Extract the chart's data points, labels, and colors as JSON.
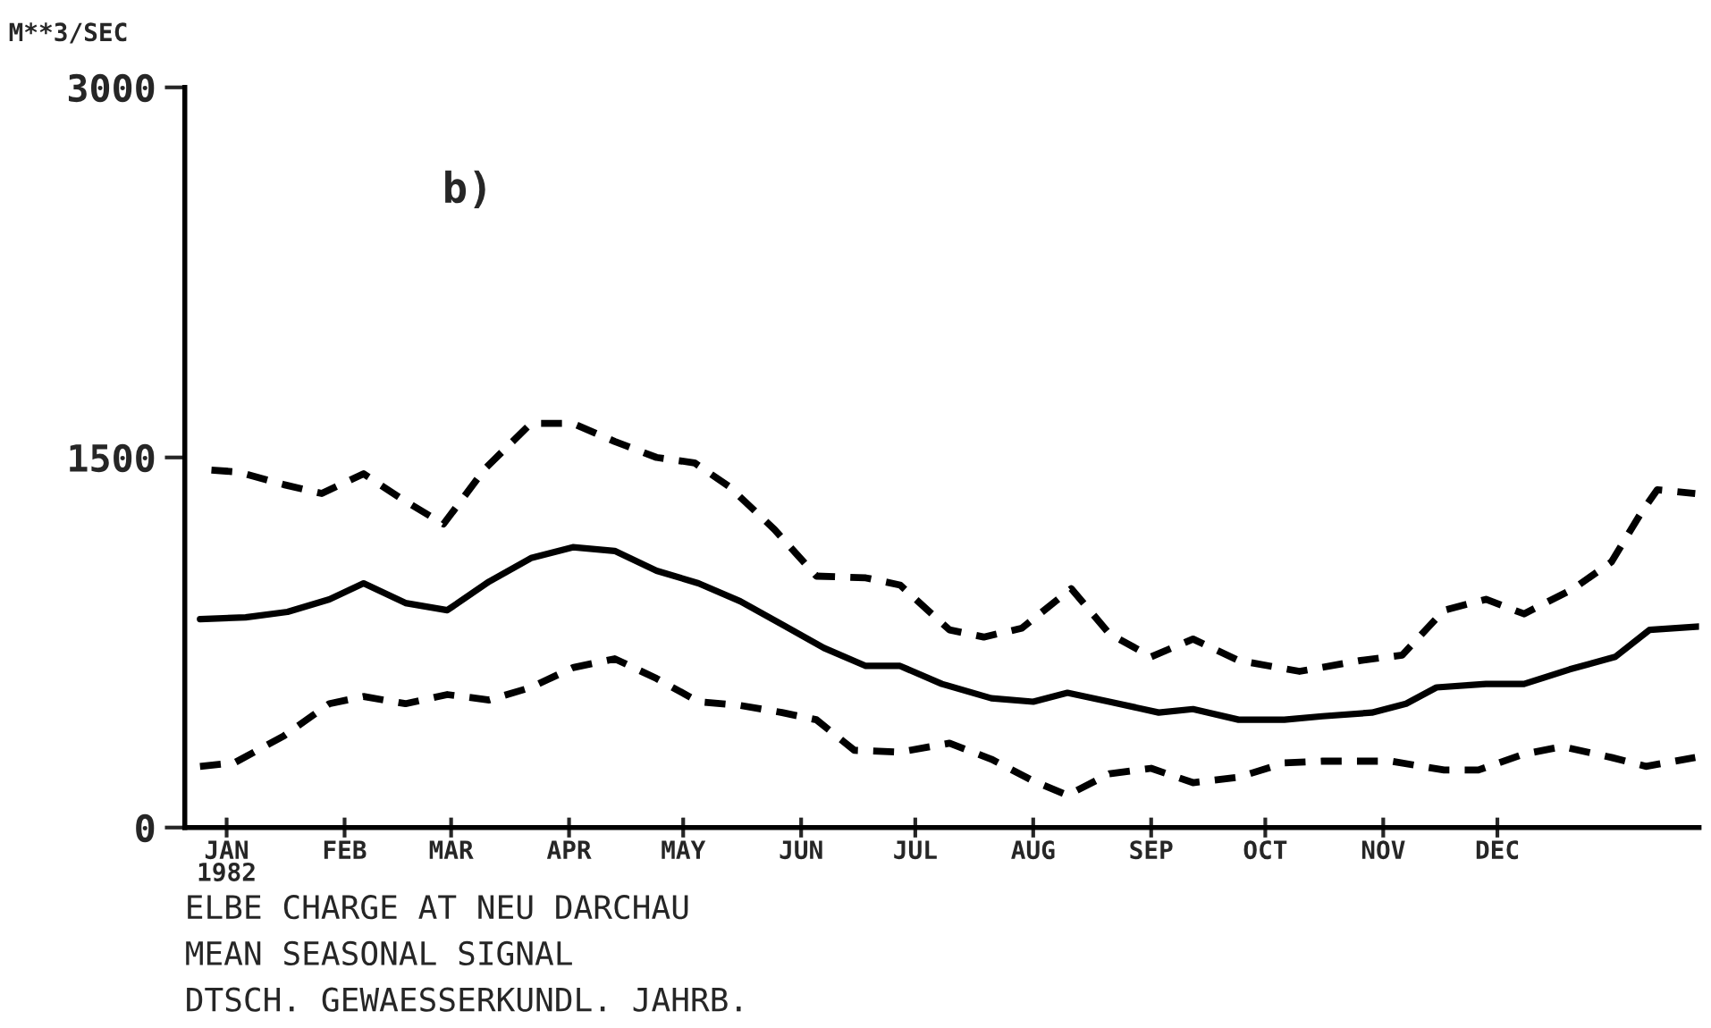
{
  "chart_data": {
    "type": "line",
    "title": "ELBE CHARGE AT NEU DARCHAU",
    "subtitle": "MEAN SEASONAL SIGNAL",
    "ylabel": "M**3/SEC",
    "annotations": [
      "b)",
      "DTSCH. GEWAESSERKUNDL. JAHRB."
    ],
    "xlim": [
      "1981-12-21",
      "1983-01-23"
    ],
    "xticks": [
      {
        "value": "1982-01-01",
        "label": "JAN\n1982"
      },
      {
        "value": "1982-02-01",
        "label": "FEB"
      },
      {
        "value": "1982-03-01",
        "label": "MAR"
      },
      {
        "value": "1982-04-01",
        "label": "APR"
      },
      {
        "value": "1982-05-01",
        "label": "MAY"
      },
      {
        "value": "1982-06-01",
        "label": "JUN"
      },
      {
        "value": "1982-07-01",
        "label": "JUL"
      },
      {
        "value": "1982-08-01",
        "label": "AUG"
      },
      {
        "value": "1982-09-01",
        "label": "SEP"
      },
      {
        "value": "1982-10-01",
        "label": "OCT"
      },
      {
        "value": "1982-11-01",
        "label": "NOV"
      },
      {
        "value": "1982-12-01",
        "label": "DEC"
      }
    ],
    "ylim": [
      0,
      3000
    ],
    "yticks": [
      0,
      1500,
      3000
    ],
    "grid": false,
    "legend": false,
    "series": [
      {
        "color": "#000000",
        "line_style": "dashed",
        "x": [
          "1981-12-28",
          "1982-01-04",
          "1982-01-16",
          "1982-01-26",
          "1982-02-06",
          "1982-02-16",
          "1982-02-27",
          "1982-03-10",
          "1982-03-22",
          "1982-04-02",
          "1982-04-13",
          "1982-04-24",
          "1982-05-04",
          "1982-05-13",
          "1982-05-25",
          "1982-06-05",
          "1982-06-18",
          "1982-06-27",
          "1982-07-10",
          "1982-07-19",
          "1982-07-29",
          "1982-08-11",
          "1982-08-21",
          "1982-09-01",
          "1982-09-12",
          "1982-09-24",
          "1982-10-10",
          "1982-10-26",
          "1982-11-06",
          "1982-11-17",
          "1982-11-28",
          "1982-12-08",
          "1982-12-21",
          "1982-12-31",
          "1983-01-08",
          "1983-01-12",
          "1983-01-22"
        ],
        "values": [
          1449,
          1441,
          1390,
          1354,
          1434,
          1332,
          1230,
          1456,
          1638,
          1638,
          1565,
          1500,
          1478,
          1383,
          1208,
          1019,
          1012,
          983,
          801,
          772,
          808,
          968,
          786,
          692,
          764,
          677,
          633,
          677,
          699,
          881,
          925,
          866,
          968,
          1077,
          1281,
          1369,
          1354
        ]
      },
      {
        "color": "#000000",
        "line_style": "solid",
        "x": [
          "1981-12-25",
          "1982-01-06",
          "1982-01-17",
          "1982-01-28",
          "1982-02-06",
          "1982-02-17",
          "1982-02-28",
          "1982-03-11",
          "1982-03-22",
          "1982-04-02",
          "1982-04-13",
          "1982-04-24",
          "1982-05-05",
          "1982-05-16",
          "1982-05-27",
          "1982-06-07",
          "1982-06-18",
          "1982-06-27",
          "1982-07-08",
          "1982-07-21",
          "1982-08-01",
          "1982-08-10",
          "1982-08-21",
          "1982-09-03",
          "1982-09-12",
          "1982-09-24",
          "1982-10-06",
          "1982-10-16",
          "1982-10-29",
          "1982-11-07",
          "1982-11-15",
          "1982-11-28",
          "1982-12-08",
          "1982-12-20",
          "1983-01-01",
          "1983-01-10",
          "1983-01-23"
        ],
        "values": [
          845,
          852,
          874,
          925,
          990,
          910,
          881,
          997,
          1092,
          1136,
          1121,
          1041,
          990,
          917,
          823,
          728,
          655,
          655,
          582,
          524,
          510,
          546,
          510,
          466,
          480,
          437,
          437,
          451,
          466,
          502,
          568,
          582,
          582,
          641,
          692,
          801,
          815
        ]
      },
      {
        "color": "#000000",
        "line_style": "dashed",
        "x": [
          "1981-12-25",
          "1982-01-03",
          "1982-01-16",
          "1982-01-28",
          "1982-02-06",
          "1982-02-17",
          "1982-02-28",
          "1982-03-11",
          "1982-03-22",
          "1982-04-02",
          "1982-04-13",
          "1982-04-24",
          "1982-05-05",
          "1982-05-16",
          "1982-05-27",
          "1982-06-05",
          "1982-06-15",
          "1982-06-27",
          "1982-07-10",
          "1982-07-21",
          "1982-08-01",
          "1982-08-10",
          "1982-08-21",
          "1982-09-01",
          "1982-09-12",
          "1982-09-24",
          "1982-10-06",
          "1982-10-16",
          "1982-11-03",
          "1982-11-17",
          "1982-11-26",
          "1982-12-08",
          "1982-12-18",
          "1982-12-31",
          "1983-01-09",
          "1983-01-22"
        ],
        "values": [
          248,
          262,
          371,
          502,
          531,
          502,
          539,
          517,
          568,
          648,
          684,
          604,
          510,
          495,
          466,
          437,
          313,
          306,
          342,
          277,
          189,
          131,
          218,
          240,
          182,
          204,
          262,
          269,
          269,
          233,
          233,
          298,
          328,
          284,
          248,
          284
        ]
      }
    ]
  }
}
